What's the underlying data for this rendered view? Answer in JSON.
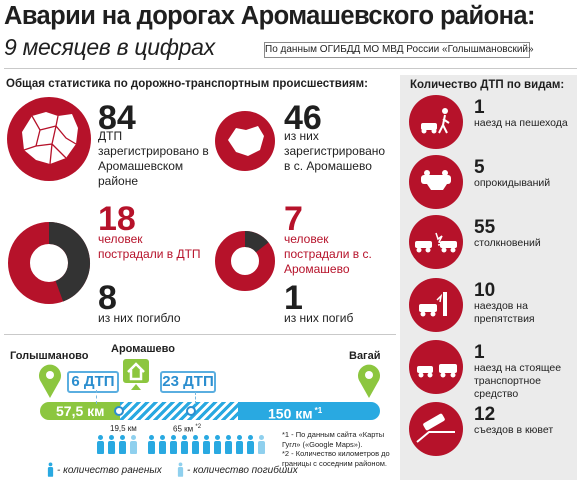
{
  "header": {
    "title": "Аварии на дорогах Аромашевского района:",
    "subtitle": "9 месяцев в цифрах",
    "source": "По данным ОГИБДД МО МВД России «Голышмановский»"
  },
  "colors": {
    "accent_red": "#b6122a",
    "dark": "#333333",
    "green": "#8cc63f",
    "blue": "#29a9e1",
    "panel": "#ebebeb"
  },
  "general": {
    "heading": "Общая статистика по дорожно-транспортным происшествиям:",
    "district": {
      "number": "84",
      "text": "ДТП зарегистрировано в Аромашевском районе"
    },
    "village": {
      "number": "46",
      "text": "из них зарегистрировано в с. Аромашево"
    },
    "injured_district": {
      "number": "18",
      "text": "человек пострадали в ДТП",
      "share_killed": 0.444
    },
    "injured_village": {
      "number": "7",
      "text": "человек пострадали в с. Аромашево",
      "share_killed": 0.143
    },
    "killed_district": {
      "number": "8",
      "text": "из них погибло"
    },
    "killed_village": {
      "number": "1",
      "text": "из них погиб"
    }
  },
  "types": {
    "heading": "Количество ДТП по видам:",
    "items": [
      {
        "number": "1",
        "label": "наезд на пешехода",
        "icon": "pedestrian-icon"
      },
      {
        "number": "5",
        "label": "опрокидываний",
        "icon": "rollover-icon"
      },
      {
        "number": "55",
        "label": "столкновений",
        "icon": "collision-icon"
      },
      {
        "number": "10",
        "label": "наездов на препятствия",
        "icon": "obstacle-icon"
      },
      {
        "number": "1",
        "label": "наезд на стоящее транспортное средство",
        "icon": "parked-vehicle-icon"
      },
      {
        "number": "12",
        "label": "съездов в кювет",
        "icon": "ditch-icon"
      }
    ]
  },
  "road": {
    "town_left": "Голышманово",
    "town_center": "Аромашево",
    "town_right": "Вагай",
    "dtp_left": "6 ДТП",
    "dtp_right": "23 ДТП",
    "segment_left": "57,5 км",
    "segment_right": "150 км",
    "segment_right_mark": "*1",
    "dist_left": "19,5 км",
    "dist_right": "65 км",
    "dist_right_mark": "*2",
    "injured_left": 3,
    "killed_left": 1,
    "injured_right": 10,
    "killed_right": 1,
    "notes": [
      "*1 - По данным сайта «Карты Гугл» («Google Maps»).",
      "*2 - Количество километров до границы с соседним районом."
    ],
    "legend_injured": "- количество раненых",
    "legend_killed": "- количество погибших"
  }
}
